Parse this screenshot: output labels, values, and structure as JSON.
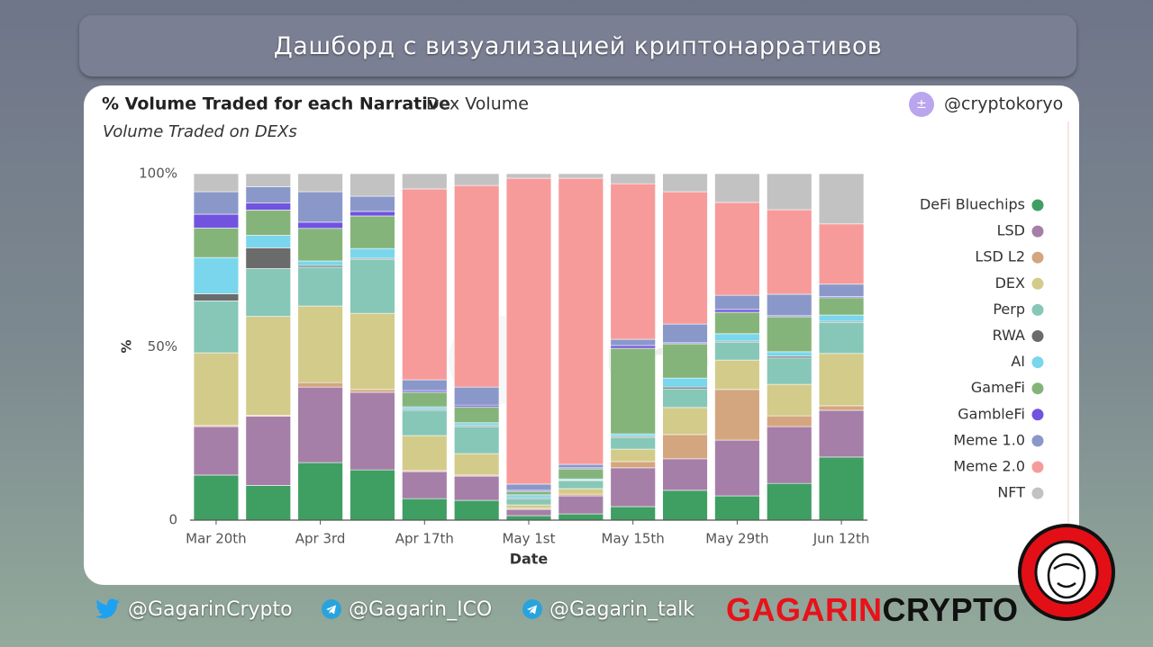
{
  "header": {
    "title": "Дашборд с визуализацией криптонарративов"
  },
  "chart_data": {
    "type": "stacked_bar",
    "title": "% Volume Traded for each Narrative",
    "tab": "Dex Volume",
    "subtitle": "Volume Traded on DEXs",
    "author": "@cryptokoryo",
    "watermark": "Dune",
    "x_label": "Date",
    "y_label": "%",
    "categories": [
      "Mar 20th",
      null,
      "Apr 3rd",
      null,
      "Apr 17th",
      null,
      "May 1st",
      null,
      "May 15th",
      null,
      "May 29th",
      null,
      "Jun 12th"
    ],
    "ylim": [
      0,
      100
    ],
    "yticks": [
      0,
      {
        "value": 50,
        "label": "50%"
      },
      {
        "value": 100,
        "label": "100%"
      }
    ],
    "grid": false,
    "legend": "right",
    "series": [
      {
        "name": "DeFi Bluechips",
        "color": "#3f9e62",
        "values": [
          13,
          10,
          16.6,
          14.5,
          6.2,
          5.7,
          1.3,
          1.8,
          3.9,
          8.6,
          7,
          10.6,
          18.2
        ]
      },
      {
        "name": "LSD",
        "color": "#a57fa8",
        "values": [
          14,
          20,
          21.8,
          22.4,
          7.8,
          7,
          1.8,
          5.2,
          11.2,
          9.1,
          16.1,
          16.4,
          13.5
        ]
      },
      {
        "name": "LSD L2",
        "color": "#d4a67f",
        "values": [
          0.3,
          0.3,
          1.3,
          0.8,
          0.3,
          0.3,
          0.3,
          0.5,
          1.8,
          7,
          14.6,
          3.1,
          1.3
        ]
      },
      {
        "name": "DEX",
        "color": "#d3cb8a",
        "values": [
          21,
          28.5,
          22.1,
          22,
          10.1,
          6.2,
          1,
          1.6,
          3.6,
          7.8,
          8.5,
          9.1,
          15.1
        ]
      },
      {
        "name": "Perp",
        "color": "#86c7b8",
        "values": [
          15,
          13.8,
          11.2,
          15.6,
          7.3,
          7.8,
          1.8,
          2.3,
          3.4,
          5.4,
          5.2,
          7.6,
          9
        ]
      },
      {
        "name": "RWA",
        "color": "#6b6b6b",
        "values": [
          2,
          6,
          0.5,
          0.3,
          0.3,
          0.3,
          0.3,
          0.2,
          0.3,
          0.5,
          0.3,
          0.5,
          0.3
        ]
      },
      {
        "name": "AI",
        "color": "#79d6ec",
        "values": [
          10.5,
          3.6,
          1.3,
          2.8,
          0.7,
          0.8,
          0.8,
          0.3,
          0.7,
          2.6,
          2.1,
          1.3,
          1.8
        ]
      },
      {
        "name": "GameFi",
        "color": "#85b47a",
        "values": [
          8.5,
          7.3,
          9.4,
          9.4,
          4.2,
          4.6,
          1,
          2.9,
          24.7,
          9.9,
          6.2,
          10.1,
          5
        ]
      },
      {
        "name": "GambleFi",
        "color": "#7153e0",
        "values": [
          4,
          2,
          1.8,
          1.3,
          0.5,
          0.5,
          0.3,
          0.3,
          0.8,
          0.3,
          0.8,
          0.3,
          0.3
        ]
      },
      {
        "name": "Meme 1.0",
        "color": "#8a98c9",
        "values": [
          6.5,
          4.7,
          8.8,
          4.4,
          3.1,
          5.2,
          1.8,
          1,
          1.8,
          5.4,
          4.1,
          6.2,
          3.6
        ]
      },
      {
        "name": "Meme 2.0",
        "color": "#f69b9a",
        "values": [
          0,
          0,
          0,
          0,
          55.1,
          58.2,
          88.3,
          82.6,
          44.9,
          38.2,
          26.8,
          24.4,
          17.4
        ]
      },
      {
        "name": "NFT",
        "color": "#c2c2c2",
        "values": [
          5.2,
          3.8,
          5.2,
          6.5,
          4.4,
          3.4,
          1.3,
          1.3,
          2.9,
          5.2,
          8.3,
          10.4,
          14.5
        ]
      }
    ]
  },
  "footer": {
    "twitter": "@GagarinCrypto",
    "telegram_1": "@Gagarin_ICO",
    "telegram_2": "@Gagarin_talk",
    "brand_1": "GAGARIN",
    "brand_2": "CRYPTO"
  }
}
